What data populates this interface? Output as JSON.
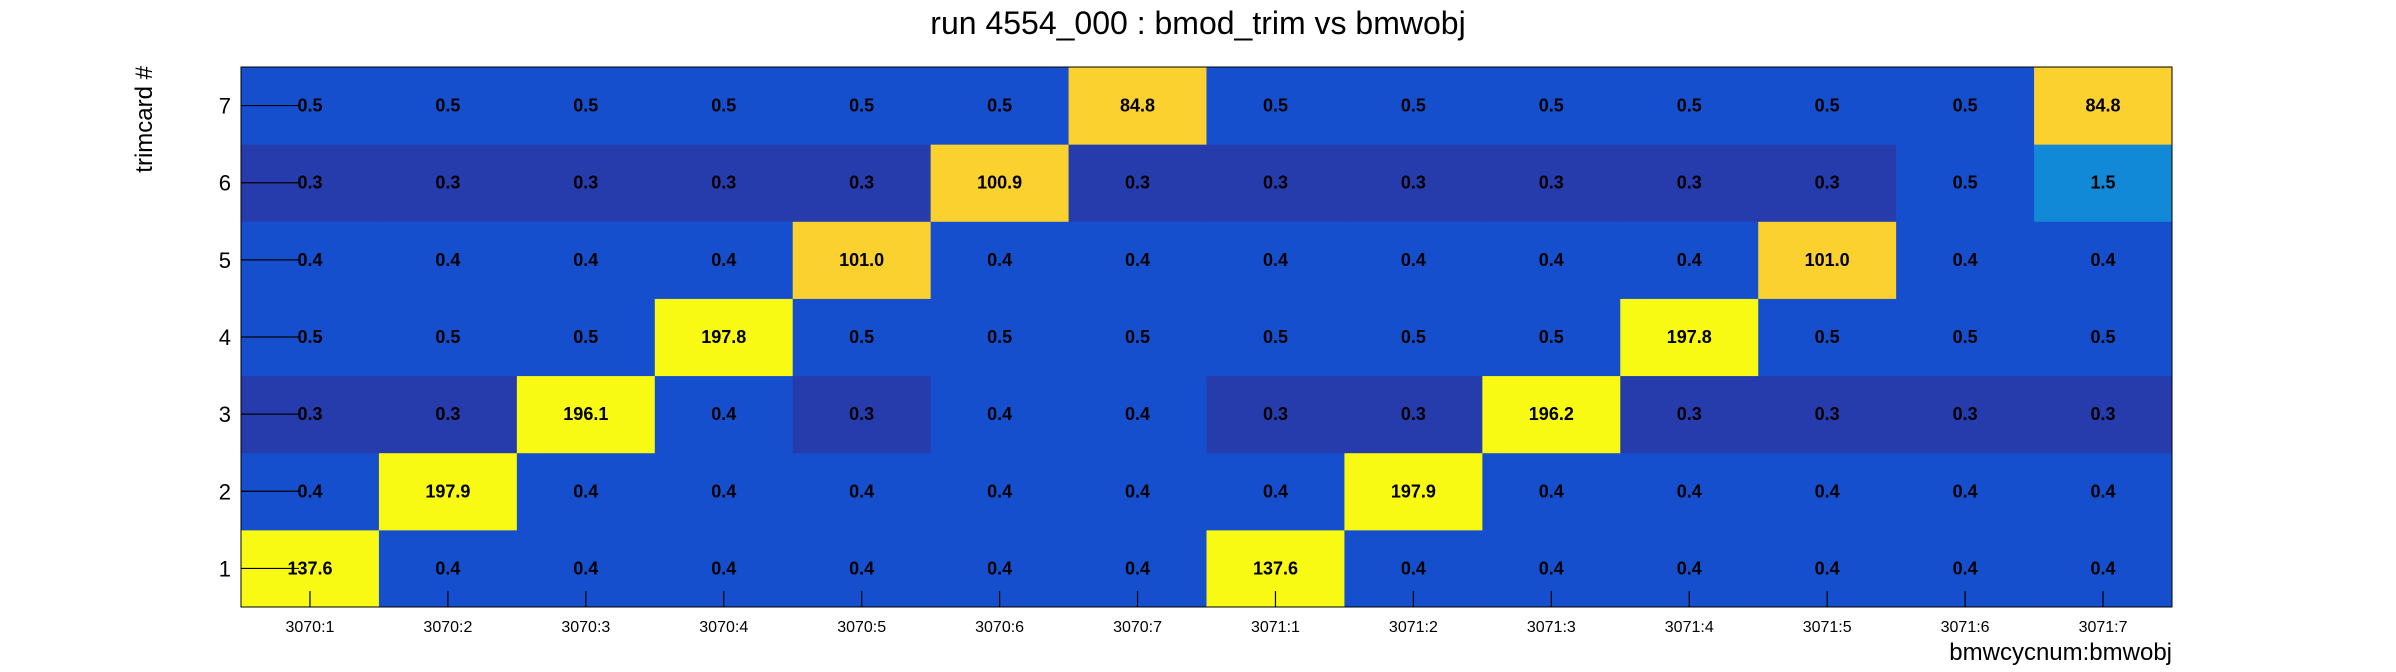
{
  "chart_data": {
    "type": "heatmap",
    "title": "run 4554_000 : bmod_trim vs bmwobj",
    "xlabel": "bmwcycnum:bmwobj",
    "ylabel": "trimcard #",
    "x_categories": [
      "3070:1",
      "3070:2",
      "3070:3",
      "3070:4",
      "3070:5",
      "3070:6",
      "3070:7",
      "3071:1",
      "3071:2",
      "3071:3",
      "3071:4",
      "3071:5",
      "3071:6",
      "3071:7"
    ],
    "y_categories": [
      "1",
      "2",
      "3",
      "4",
      "5",
      "6",
      "7"
    ],
    "values": [
      [
        137.6,
        0.4,
        0.4,
        0.4,
        0.4,
        0.4,
        0.4,
        137.6,
        0.4,
        0.4,
        0.4,
        0.4,
        0.4,
        0.4
      ],
      [
        0.4,
        197.9,
        0.4,
        0.4,
        0.4,
        0.4,
        0.4,
        0.4,
        197.9,
        0.4,
        0.4,
        0.4,
        0.4,
        0.4
      ],
      [
        0.3,
        0.3,
        196.1,
        0.4,
        0.3,
        0.4,
        0.4,
        0.3,
        0.3,
        196.2,
        0.3,
        0.3,
        0.3,
        0.3
      ],
      [
        0.5,
        0.5,
        0.5,
        197.8,
        0.5,
        0.5,
        0.5,
        0.5,
        0.5,
        0.5,
        197.8,
        0.5,
        0.5,
        0.5
      ],
      [
        0.4,
        0.4,
        0.4,
        0.4,
        101.0,
        0.4,
        0.4,
        0.4,
        0.4,
        0.4,
        0.4,
        101.0,
        0.4,
        0.4
      ],
      [
        0.3,
        0.3,
        0.3,
        0.3,
        0.3,
        100.9,
        0.3,
        0.3,
        0.3,
        0.3,
        0.3,
        0.3,
        0.5,
        1.5
      ],
      [
        0.5,
        0.5,
        0.5,
        0.5,
        0.5,
        0.5,
        84.8,
        0.5,
        0.5,
        0.5,
        0.5,
        0.5,
        0.5,
        84.8
      ]
    ],
    "value_format": "0.0",
    "colors": {
      "high": "#f9fa14",
      "high_mid": "#fad12e",
      "medium": "#1289d6",
      "low": "#164fce",
      "lowest": "#263cad"
    }
  }
}
